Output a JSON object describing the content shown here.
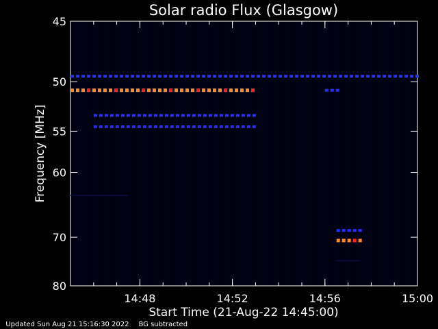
{
  "chart_data": {
    "type": "heatmap",
    "title": "Solar radio Flux (Glasgow)",
    "xlabel": "Start Time (21-Aug-22 14:45:00)",
    "ylabel": "Frequency [MHz]",
    "x_ticks": [
      "14:48",
      "14:52",
      "14:56",
      "15:00"
    ],
    "y_ticks": [
      "45",
      "50",
      "55",
      "60",
      "70",
      "80"
    ],
    "xlim": [
      "14:45",
      "15:00"
    ],
    "ylim": [
      80,
      45
    ],
    "y_scale": "reciprocal",
    "colors": {
      "background": "#000000",
      "low": "#0a0a3a",
      "mid": "#2233ff",
      "high": "#ff8a2a",
      "peak": "#ff2020"
    },
    "features": [
      {
        "name": "",
        "freq_mhz": 49.5,
        "t_start": "14:45",
        "t_end": "15:00",
        "intensity": "mid",
        "dashed": true
      },
      {
        "name": "",
        "freq_mhz": 50.8,
        "t_start": "14:45",
        "t_end": "14:53",
        "intensity": "high",
        "dashed": true
      },
      {
        "name": "",
        "freq_mhz": 53.3,
        "t_start": "14:46",
        "t_end": "14:53",
        "intensity": "mid",
        "dashed": true
      },
      {
        "name": "",
        "freq_mhz": 54.5,
        "t_start": "14:46",
        "t_end": "14:53",
        "intensity": "mid",
        "dashed": true
      },
      {
        "name": "",
        "freq_mhz": 50.8,
        "t_start": "14:56",
        "t_end": "14:56.5",
        "intensity": "mid",
        "dashed": true
      },
      {
        "name": "",
        "freq_mhz": 63.2,
        "t_start": "14:45",
        "t_end": "14:47.5",
        "intensity": "low",
        "dashed": false
      },
      {
        "name": "",
        "freq_mhz": 68.8,
        "t_start": "14:56.5",
        "t_end": "14:57.5",
        "intensity": "mid",
        "dashed": true
      },
      {
        "name": "",
        "freq_mhz": 70.6,
        "t_start": "14:56.5",
        "t_end": "14:57.5",
        "intensity": "high",
        "dashed": true
      },
      {
        "name": "",
        "freq_mhz": 74.5,
        "t_start": "14:56.5",
        "t_end": "14:57.5",
        "intensity": "low",
        "dashed": false
      }
    ]
  },
  "footer": {
    "updated": "Updated Sun Aug 21 15:16:30 2022",
    "note": "BG subtracted"
  }
}
